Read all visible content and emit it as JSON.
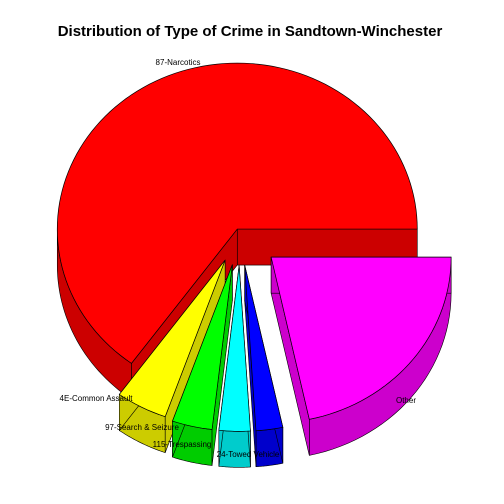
{
  "chart_data": {
    "type": "pie",
    "style": "3d-exploded",
    "title": "Distribution of Type of Crime in Sandtown-Winchester",
    "slices": [
      {
        "label": "87-Narcotics",
        "value": 65.0,
        "color": "#ff0000",
        "side_color": "#cc0000"
      },
      {
        "label": "4E-Common Assault",
        "value": 4.6,
        "color": "#ffff00",
        "side_color": "#cccc00"
      },
      {
        "label": "97-Search & Seizure",
        "value": 3.6,
        "color": "#00ff00",
        "side_color": "#00cc00"
      },
      {
        "label": "115-Trespassing",
        "value": 2.8,
        "color": "#00ffff",
        "side_color": "#00cccc"
      },
      {
        "label": "24-Towed Vehicle",
        "value": 2.4,
        "color": "#0000ff",
        "side_color": "#0000cc"
      },
      {
        "label": "Other",
        "value": 21.6,
        "color": "#ff00ff",
        "side_color": "#cc00cc"
      }
    ]
  }
}
